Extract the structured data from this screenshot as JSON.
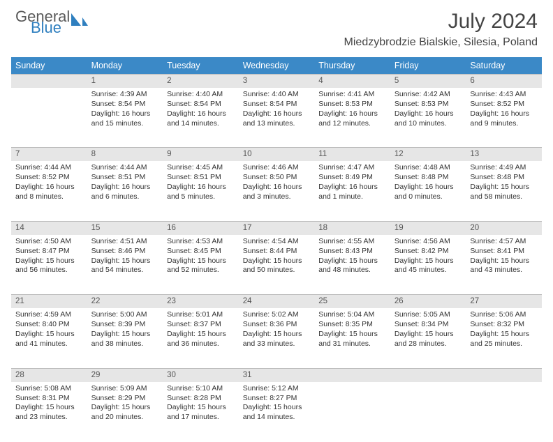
{
  "logo": {
    "text1": "General",
    "text2": "Blue",
    "color_general": "#5a5a5a",
    "color_blue": "#2f7fbf"
  },
  "title": "July 2024",
  "location": "Miedzybrodzie Bialskie, Silesia, Poland",
  "header_bg": "#3b89c7",
  "daybar_bg": "#e6e6e6",
  "day_names": [
    "Sunday",
    "Monday",
    "Tuesday",
    "Wednesday",
    "Thursday",
    "Friday",
    "Saturday"
  ],
  "first_weekday_index": 1,
  "days": [
    {
      "n": 1,
      "sr": "4:39 AM",
      "ss": "8:54 PM",
      "dl": "16 hours and 15 minutes."
    },
    {
      "n": 2,
      "sr": "4:40 AM",
      "ss": "8:54 PM",
      "dl": "16 hours and 14 minutes."
    },
    {
      "n": 3,
      "sr": "4:40 AM",
      "ss": "8:54 PM",
      "dl": "16 hours and 13 minutes."
    },
    {
      "n": 4,
      "sr": "4:41 AM",
      "ss": "8:53 PM",
      "dl": "16 hours and 12 minutes."
    },
    {
      "n": 5,
      "sr": "4:42 AM",
      "ss": "8:53 PM",
      "dl": "16 hours and 10 minutes."
    },
    {
      "n": 6,
      "sr": "4:43 AM",
      "ss": "8:52 PM",
      "dl": "16 hours and 9 minutes."
    },
    {
      "n": 7,
      "sr": "4:44 AM",
      "ss": "8:52 PM",
      "dl": "16 hours and 8 minutes."
    },
    {
      "n": 8,
      "sr": "4:44 AM",
      "ss": "8:51 PM",
      "dl": "16 hours and 6 minutes."
    },
    {
      "n": 9,
      "sr": "4:45 AM",
      "ss": "8:51 PM",
      "dl": "16 hours and 5 minutes."
    },
    {
      "n": 10,
      "sr": "4:46 AM",
      "ss": "8:50 PM",
      "dl": "16 hours and 3 minutes."
    },
    {
      "n": 11,
      "sr": "4:47 AM",
      "ss": "8:49 PM",
      "dl": "16 hours and 1 minute."
    },
    {
      "n": 12,
      "sr": "4:48 AM",
      "ss": "8:48 PM",
      "dl": "16 hours and 0 minutes."
    },
    {
      "n": 13,
      "sr": "4:49 AM",
      "ss": "8:48 PM",
      "dl": "15 hours and 58 minutes."
    },
    {
      "n": 14,
      "sr": "4:50 AM",
      "ss": "8:47 PM",
      "dl": "15 hours and 56 minutes."
    },
    {
      "n": 15,
      "sr": "4:51 AM",
      "ss": "8:46 PM",
      "dl": "15 hours and 54 minutes."
    },
    {
      "n": 16,
      "sr": "4:53 AM",
      "ss": "8:45 PM",
      "dl": "15 hours and 52 minutes."
    },
    {
      "n": 17,
      "sr": "4:54 AM",
      "ss": "8:44 PM",
      "dl": "15 hours and 50 minutes."
    },
    {
      "n": 18,
      "sr": "4:55 AM",
      "ss": "8:43 PM",
      "dl": "15 hours and 48 minutes."
    },
    {
      "n": 19,
      "sr": "4:56 AM",
      "ss": "8:42 PM",
      "dl": "15 hours and 45 minutes."
    },
    {
      "n": 20,
      "sr": "4:57 AM",
      "ss": "8:41 PM",
      "dl": "15 hours and 43 minutes."
    },
    {
      "n": 21,
      "sr": "4:59 AM",
      "ss": "8:40 PM",
      "dl": "15 hours and 41 minutes."
    },
    {
      "n": 22,
      "sr": "5:00 AM",
      "ss": "8:39 PM",
      "dl": "15 hours and 38 minutes."
    },
    {
      "n": 23,
      "sr": "5:01 AM",
      "ss": "8:37 PM",
      "dl": "15 hours and 36 minutes."
    },
    {
      "n": 24,
      "sr": "5:02 AM",
      "ss": "8:36 PM",
      "dl": "15 hours and 33 minutes."
    },
    {
      "n": 25,
      "sr": "5:04 AM",
      "ss": "8:35 PM",
      "dl": "15 hours and 31 minutes."
    },
    {
      "n": 26,
      "sr": "5:05 AM",
      "ss": "8:34 PM",
      "dl": "15 hours and 28 minutes."
    },
    {
      "n": 27,
      "sr": "5:06 AM",
      "ss": "8:32 PM",
      "dl": "15 hours and 25 minutes."
    },
    {
      "n": 28,
      "sr": "5:08 AM",
      "ss": "8:31 PM",
      "dl": "15 hours and 23 minutes."
    },
    {
      "n": 29,
      "sr": "5:09 AM",
      "ss": "8:29 PM",
      "dl": "15 hours and 20 minutes."
    },
    {
      "n": 30,
      "sr": "5:10 AM",
      "ss": "8:28 PM",
      "dl": "15 hours and 17 minutes."
    },
    {
      "n": 31,
      "sr": "5:12 AM",
      "ss": "8:27 PM",
      "dl": "15 hours and 14 minutes."
    }
  ],
  "labels": {
    "sunrise": "Sunrise:",
    "sunset": "Sunset:",
    "daylight": "Daylight:"
  }
}
